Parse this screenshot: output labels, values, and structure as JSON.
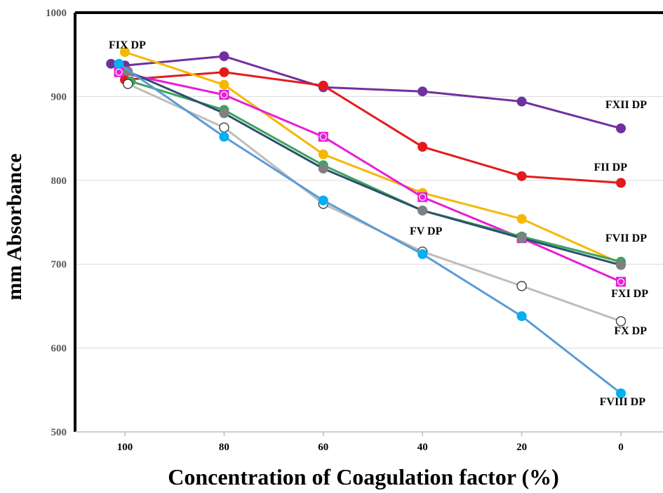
{
  "chart_data": {
    "type": "line",
    "title": "",
    "xlabel": "Concentration of Coagulation factor (%)",
    "ylabel": "mm Absorbance",
    "x_categories": [
      "100",
      "80",
      "60",
      "40",
      "20",
      "0"
    ],
    "yticks": [
      "500",
      "600",
      "700",
      "800",
      "900",
      "1000"
    ],
    "ylim": [
      500,
      1000
    ],
    "grid": "horizontal",
    "legend": "none",
    "series": [
      {
        "name": "FXII DP",
        "color": "#7030A0",
        "marker": "filled-circle",
        "points": [
          [
            102.8,
            939
          ],
          [
            100,
            937
          ],
          [
            80,
            948
          ],
          [
            60,
            911
          ],
          [
            40,
            906
          ],
          [
            20,
            894
          ],
          [
            0,
            862
          ]
        ]
      },
      {
        "name": "FII DP",
        "color": "#E41A1C",
        "marker": "filled-circle",
        "points": [
          [
            100,
            920
          ],
          [
            80,
            929
          ],
          [
            60,
            913
          ],
          [
            40,
            840
          ],
          [
            20,
            805
          ],
          [
            0,
            797
          ]
        ]
      },
      {
        "name": "FIX DP",
        "color": "#F5B800",
        "marker": "filled-circle",
        "points": [
          [
            100,
            953
          ],
          [
            80,
            914
          ],
          [
            60,
            831
          ],
          [
            40,
            785
          ],
          [
            20,
            754
          ],
          [
            0,
            701
          ]
        ]
      },
      {
        "name": "FXI DP",
        "color": "#E61ED8",
        "marker": "square-circle",
        "points": [
          [
            101.2,
            929
          ],
          [
            80,
            902
          ],
          [
            60,
            852
          ],
          [
            40,
            780
          ],
          [
            20,
            731
          ],
          [
            0,
            679
          ]
        ]
      },
      {
        "name": "FVII DP",
        "color": "#3BA55C",
        "marker": "filled-circle",
        "points": [
          [
            98.8,
            918
          ],
          [
            80,
            884
          ],
          [
            60,
            818
          ],
          [
            40,
            764
          ],
          [
            20,
            733
          ],
          [
            0,
            703
          ]
        ]
      },
      {
        "name": "FV DP",
        "color": "#2F4F6F",
        "marker": "filled-circle",
        "marker_color": "#808080",
        "points": [
          [
            99.4,
            930
          ],
          [
            80,
            880
          ],
          [
            60,
            814
          ],
          [
            40,
            764
          ],
          [
            20,
            731
          ],
          [
            0,
            699
          ]
        ]
      },
      {
        "name": "FX DP",
        "color": "#BDBDBD",
        "marker": "open-circle",
        "points": [
          [
            99.4,
            915
          ],
          [
            80,
            863
          ],
          [
            60,
            772
          ],
          [
            40,
            715
          ],
          [
            20,
            674
          ],
          [
            0,
            632
          ]
        ]
      },
      {
        "name": "FVIII DP",
        "color": "#5B9BD5",
        "marker": "filled-circle",
        "marker_color": "#00B0F0",
        "points": [
          [
            101.2,
            939
          ],
          [
            80,
            852
          ],
          [
            60,
            776
          ],
          [
            40,
            712
          ],
          [
            20,
            638
          ],
          [
            0,
            546
          ]
        ]
      }
    ]
  }
}
